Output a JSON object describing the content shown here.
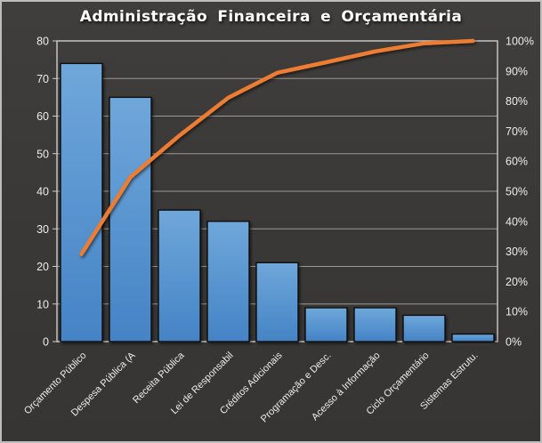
{
  "window": {
    "background_top": "#403E3C",
    "background_bottom": "#373533",
    "outer_border_color": "#BDBDBD"
  },
  "chart_data": {
    "type": "bar",
    "subtype": "pareto",
    "title": "Administração Financeira e Orçamentária",
    "categories": [
      "Orçamento Público",
      "Despesa Pública (A",
      "Receita Pública",
      "Lei de Responsabil",
      "Créditos Adicionais",
      "Programação e Desc.",
      "Acesso à Informação",
      "Ciclo Orçamentário",
      "Sistemas Estrutu."
    ],
    "series": [
      {
        "name": "frequency-bars",
        "type": "bar",
        "axis": "left",
        "values": [
          74,
          65,
          35,
          32,
          21,
          9,
          9,
          7,
          2
        ]
      },
      {
        "name": "cumulative-percent-line",
        "type": "line",
        "axis": "right",
        "values": [
          29.1,
          54.7,
          68.5,
          81.1,
          89.4,
          92.9,
          96.5,
          99.2,
          100
        ]
      }
    ],
    "left_axis": {
      "min": 0,
      "max": 80,
      "step": 10,
      "ticks": [
        "0",
        "10",
        "20",
        "30",
        "40",
        "50",
        "60",
        "70",
        "80"
      ]
    },
    "right_axis": {
      "min": 0,
      "max": 100,
      "step": 10,
      "ticks": [
        "0%",
        "10%",
        "20%",
        "30%",
        "40%",
        "50%",
        "60%",
        "70%",
        "80%",
        "90%",
        "100%"
      ]
    },
    "grid": true,
    "legend": "none",
    "colors": {
      "bar_gradient_top": "#6FA7DA",
      "bar_gradient_bottom": "#4483C5",
      "bar_border": "#111111",
      "line": "#ED7D31",
      "gridline": "#9C9892",
      "axis_frame": "#CFCDCB",
      "tick_text": "#EFEDEA",
      "title_text": "#FFFFFF"
    }
  }
}
